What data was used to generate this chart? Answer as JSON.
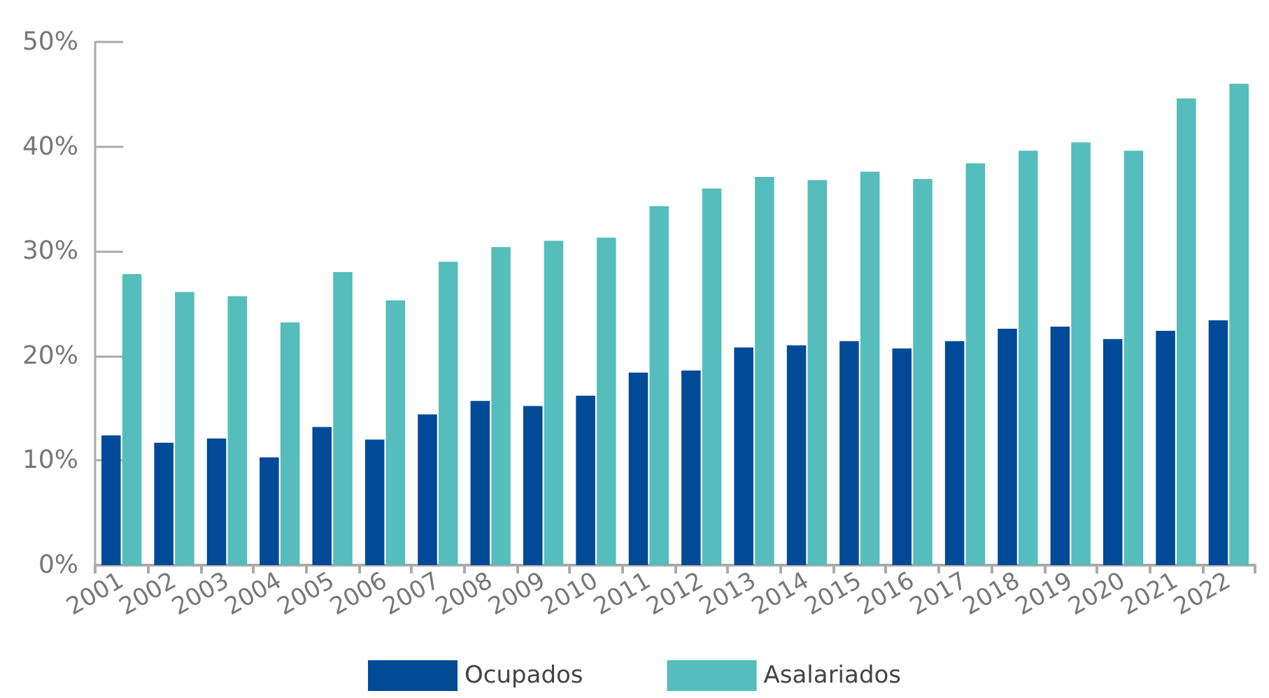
{
  "chart_data": {
    "type": "bar",
    "categories": [
      "2001",
      "2002",
      "2003",
      "2004",
      "2005",
      "2006",
      "2007",
      "2008",
      "2009",
      "2010",
      "2011",
      "2012",
      "2013",
      "2014",
      "2015",
      "2016",
      "2017",
      "2018",
      "2019",
      "2020",
      "2021",
      "2022"
    ],
    "series": [
      {
        "name": "Ocupados",
        "color": "#004a98",
        "values": [
          12.4,
          11.7,
          12.1,
          10.3,
          13.2,
          12.0,
          14.4,
          15.7,
          15.2,
          16.2,
          18.4,
          18.6,
          20.8,
          21.0,
          21.4,
          20.7,
          21.4,
          22.6,
          22.8,
          21.6,
          22.4,
          23.4
        ]
      },
      {
        "name": "Asalariados",
        "color": "#55bdbb",
        "values": [
          27.8,
          26.1,
          25.7,
          23.2,
          28.0,
          25.3,
          29.0,
          30.4,
          31.0,
          31.3,
          34.3,
          36.0,
          37.1,
          36.8,
          37.6,
          36.9,
          38.4,
          39.6,
          40.4,
          39.6,
          44.6,
          46.0
        ]
      }
    ],
    "ylim": [
      0,
      50
    ],
    "yticks": [
      {
        "value": 0,
        "label": "0%"
      },
      {
        "value": 10,
        "label": "10%"
      },
      {
        "value": 20,
        "label": "20%"
      },
      {
        "value": 30,
        "label": "30%"
      },
      {
        "value": 40,
        "label": "40%"
      },
      {
        "value": 50,
        "label": "50%"
      }
    ],
    "grid": false,
    "legend": "bottom"
  }
}
